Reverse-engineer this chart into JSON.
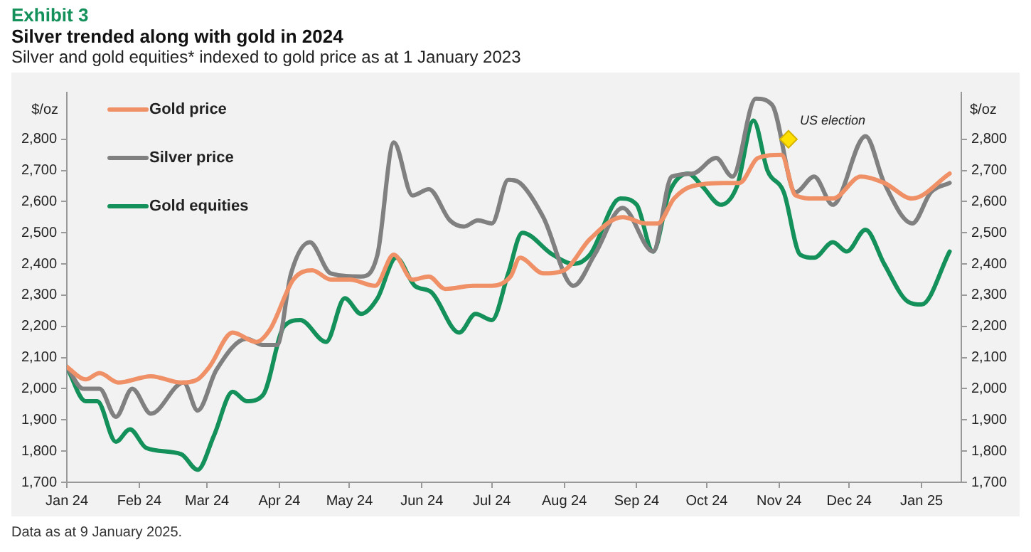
{
  "chart_data": {
    "type": "line",
    "title": "Silver trended along with gold in 2024",
    "subtitle": "Silver and gold equities* indexed to gold price as at 1 January 2023",
    "ylabel": "$/oz",
    "y2label": "$/oz",
    "annotations": [
      "Exhibit 3",
      "Data as at 9 January 2025.",
      {
        "text": "US election",
        "x": "2024-11-05",
        "y": 2800
      }
    ],
    "series": [
      {
        "name": "Gold price",
        "color": "#ef9066",
        "x": [
          "2024-01-01",
          "2024-01-09",
          "2024-01-15",
          "2024-01-23",
          "2024-02-06",
          "2024-02-19",
          "2024-02-26",
          "2024-03-02",
          "2024-03-12",
          "2024-03-22",
          "2024-03-28",
          "2024-04-07",
          "2024-04-15",
          "2024-04-23",
          "2024-05-01",
          "2024-05-12",
          "2024-05-20",
          "2024-05-28",
          "2024-06-04",
          "2024-06-11",
          "2024-06-23",
          "2024-07-01",
          "2024-07-09",
          "2024-07-13",
          "2024-07-23",
          "2024-08-01",
          "2024-08-12",
          "2024-08-26",
          "2024-09-05",
          "2024-09-10",
          "2024-09-17",
          "2024-09-25",
          "2024-10-11",
          "2024-10-15",
          "2024-10-23",
          "2024-11-02",
          "2024-11-08",
          "2024-11-16",
          "2024-11-24",
          "2024-12-06",
          "2024-12-16",
          "2024-12-28",
          "2025-01-13"
        ],
        "values": [
          2070,
          2030,
          2050,
          2020,
          2040,
          2020,
          2030,
          2070,
          2180,
          2150,
          2190,
          2350,
          2380,
          2350,
          2350,
          2330,
          2430,
          2350,
          2360,
          2320,
          2330,
          2330,
          2360,
          2420,
          2370,
          2380,
          2480,
          2550,
          2530,
          2530,
          2610,
          2650,
          2660,
          2660,
          2740,
          2750,
          2620,
          2610,
          2610,
          2680,
          2660,
          2610,
          2690
        ]
      },
      {
        "name": "Silver price",
        "color": "#808080",
        "x": [
          "2024-01-01",
          "2024-01-08",
          "2024-01-15",
          "2024-01-22",
          "2024-01-29",
          "2024-02-06",
          "2024-02-20",
          "2024-02-26",
          "2024-03-05",
          "2024-03-18",
          "2024-03-25",
          "2024-03-31",
          "2024-04-06",
          "2024-04-14",
          "2024-04-23",
          "2024-05-06",
          "2024-05-13",
          "2024-05-20",
          "2024-05-28",
          "2024-06-04",
          "2024-06-13",
          "2024-06-19",
          "2024-06-25",
          "2024-07-01",
          "2024-07-08",
          "2024-07-13",
          "2024-07-23",
          "2024-08-05",
          "2024-08-14",
          "2024-08-26",
          "2024-09-08",
          "2024-09-16",
          "2024-09-25",
          "2024-10-05",
          "2024-10-12",
          "2024-10-22",
          "2024-10-29",
          "2024-11-08",
          "2024-11-16",
          "2024-11-24",
          "2024-12-08",
          "2024-12-16",
          "2024-12-28",
          "2025-01-05",
          "2025-01-13"
        ],
        "values": [
          2070,
          2000,
          2000,
          1910,
          2000,
          1920,
          2020,
          1930,
          2060,
          2160,
          2140,
          2140,
          2370,
          2470,
          2370,
          2360,
          2430,
          2790,
          2620,
          2640,
          2540,
          2520,
          2540,
          2530,
          2670,
          2660,
          2550,
          2330,
          2430,
          2580,
          2440,
          2680,
          2690,
          2740,
          2680,
          2930,
          2910,
          2630,
          2680,
          2590,
          2810,
          2660,
          2530,
          2630,
          2660
        ]
      },
      {
        "name": "Gold equities",
        "color": "#14915a",
        "x": [
          "2024-01-01",
          "2024-01-09",
          "2024-01-14",
          "2024-01-22",
          "2024-01-28",
          "2024-02-04",
          "2024-02-19",
          "2024-02-26",
          "2024-03-04",
          "2024-03-12",
          "2024-03-18",
          "2024-03-25",
          "2024-04-03",
          "2024-04-10",
          "2024-04-21",
          "2024-04-29",
          "2024-05-06",
          "2024-05-13",
          "2024-05-21",
          "2024-05-29",
          "2024-06-05",
          "2024-06-17",
          "2024-06-24",
          "2024-07-01",
          "2024-07-08",
          "2024-07-14",
          "2024-07-27",
          "2024-08-05",
          "2024-08-12",
          "2024-08-25",
          "2024-09-01",
          "2024-09-08",
          "2024-09-15",
          "2024-09-23",
          "2024-09-29",
          "2024-10-07",
          "2024-10-14",
          "2024-10-21",
          "2024-10-27",
          "2024-11-03",
          "2024-11-10",
          "2024-11-16",
          "2024-11-24",
          "2024-11-30",
          "2024-12-08",
          "2024-12-16",
          "2024-12-26",
          "2025-01-01",
          "2025-01-13"
        ],
        "values": [
          2070,
          1960,
          1960,
          1830,
          1870,
          1810,
          1790,
          1740,
          1850,
          1990,
          1960,
          1980,
          2200,
          2220,
          2150,
          2290,
          2240,
          2290,
          2420,
          2330,
          2310,
          2180,
          2240,
          2220,
          2370,
          2500,
          2430,
          2400,
          2430,
          2610,
          2590,
          2440,
          2630,
          2690,
          2650,
          2590,
          2650,
          2860,
          2700,
          2630,
          2430,
          2420,
          2470,
          2440,
          2510,
          2400,
          2280,
          2270,
          2440
        ]
      }
    ],
    "xlim": [
      "2024-01-01",
      "2025-01-18"
    ],
    "xticks": [
      {
        "value": "2024-01-01",
        "label": "Jan 24"
      },
      {
        "value": "2024-02-01",
        "label": "Feb 24"
      },
      {
        "value": "2024-03-01",
        "label": "Mar 24"
      },
      {
        "value": "2024-04-01",
        "label": "Apr 24"
      },
      {
        "value": "2024-05-01",
        "label": "May 24"
      },
      {
        "value": "2024-06-01",
        "label": "Jun 24"
      },
      {
        "value": "2024-07-01",
        "label": "Jul 24"
      },
      {
        "value": "2024-08-01",
        "label": "Aug 24"
      },
      {
        "value": "2024-09-01",
        "label": "Sep 24"
      },
      {
        "value": "2024-10-01",
        "label": "Oct 24"
      },
      {
        "value": "2024-11-01",
        "label": "Nov 24"
      },
      {
        "value": "2024-12-01",
        "label": "Dec 24"
      },
      {
        "value": "2025-01-01",
        "label": "Jan 25"
      }
    ],
    "ylim": [
      1700,
      2950
    ],
    "yticks": [
      {
        "value": 1700,
        "label": "1,700"
      },
      {
        "value": 1800,
        "label": "1,800"
      },
      {
        "value": 1900,
        "label": "1,900"
      },
      {
        "value": 2000,
        "label": "2,000"
      },
      {
        "value": 2100,
        "label": "2,100"
      },
      {
        "value": 2200,
        "label": "2,200"
      },
      {
        "value": 2300,
        "label": "2,300"
      },
      {
        "value": 2400,
        "label": "2,400"
      },
      {
        "value": 2500,
        "label": "2,500"
      },
      {
        "value": 2600,
        "label": "2,600"
      },
      {
        "value": 2700,
        "label": "2,700"
      },
      {
        "value": 2800,
        "label": "2,800"
      }
    ],
    "y2lim": [
      1700,
      2950
    ],
    "y2ticks": [
      {
        "value": 1700,
        "label": "1,700"
      },
      {
        "value": 1800,
        "label": "1,800"
      },
      {
        "value": 1900,
        "label": "1,900"
      },
      {
        "value": 2000,
        "label": "2,000"
      },
      {
        "value": 2100,
        "label": "2,100"
      },
      {
        "value": 2200,
        "label": "2,200"
      },
      {
        "value": 2300,
        "label": "2,300"
      },
      {
        "value": 2400,
        "label": "2,400"
      },
      {
        "value": 2500,
        "label": "2,500"
      },
      {
        "value": 2600,
        "label": "2,600"
      },
      {
        "value": 2700,
        "label": "2,700"
      },
      {
        "value": 2800,
        "label": "2,800"
      }
    ],
    "grid": false,
    "legend": "top left",
    "marker": "none",
    "line_style": "solid"
  }
}
